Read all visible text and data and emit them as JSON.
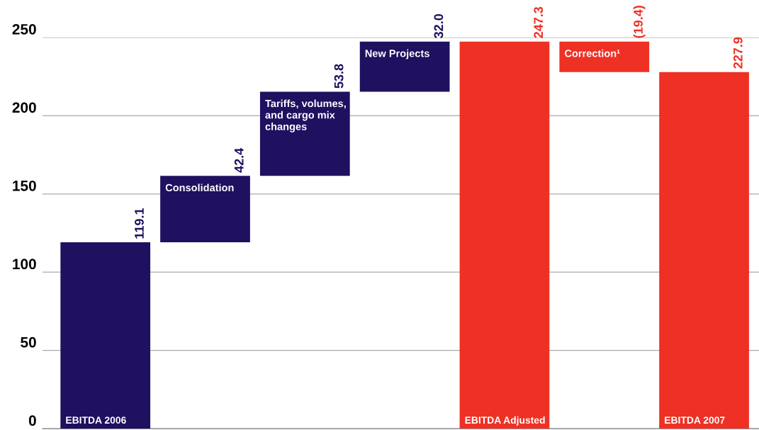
{
  "chart_data": {
    "type": "bar",
    "categories": [
      "EBITDA 2006",
      "Consolidation",
      "Tariffs, volumes,\nand cargo mix\nchanges",
      "New Projects",
      "EBITDA Adjusted",
      "Correction¹",
      "EBITDA 2007"
    ],
    "values": [
      119.1,
      42.4,
      53.8,
      32.0,
      247.3,
      -19.4,
      227.9
    ],
    "base": [
      0,
      119.1,
      161.5,
      215.3,
      0,
      247.3,
      0
    ],
    "colors": [
      "#1f1060",
      "#1f1060",
      "#1f1060",
      "#1f1060",
      "#ee3124",
      "#ee3124",
      "#ee3124"
    ],
    "value_labels": [
      "119.1",
      "42.4",
      "53.8",
      "32.0",
      "247.3",
      "(19.4)",
      "227.9"
    ],
    "ylim": [
      0,
      250
    ],
    "yticks": [
      0,
      50,
      100,
      150,
      200,
      250
    ],
    "grid": "y",
    "tick_labels": "y"
  }
}
